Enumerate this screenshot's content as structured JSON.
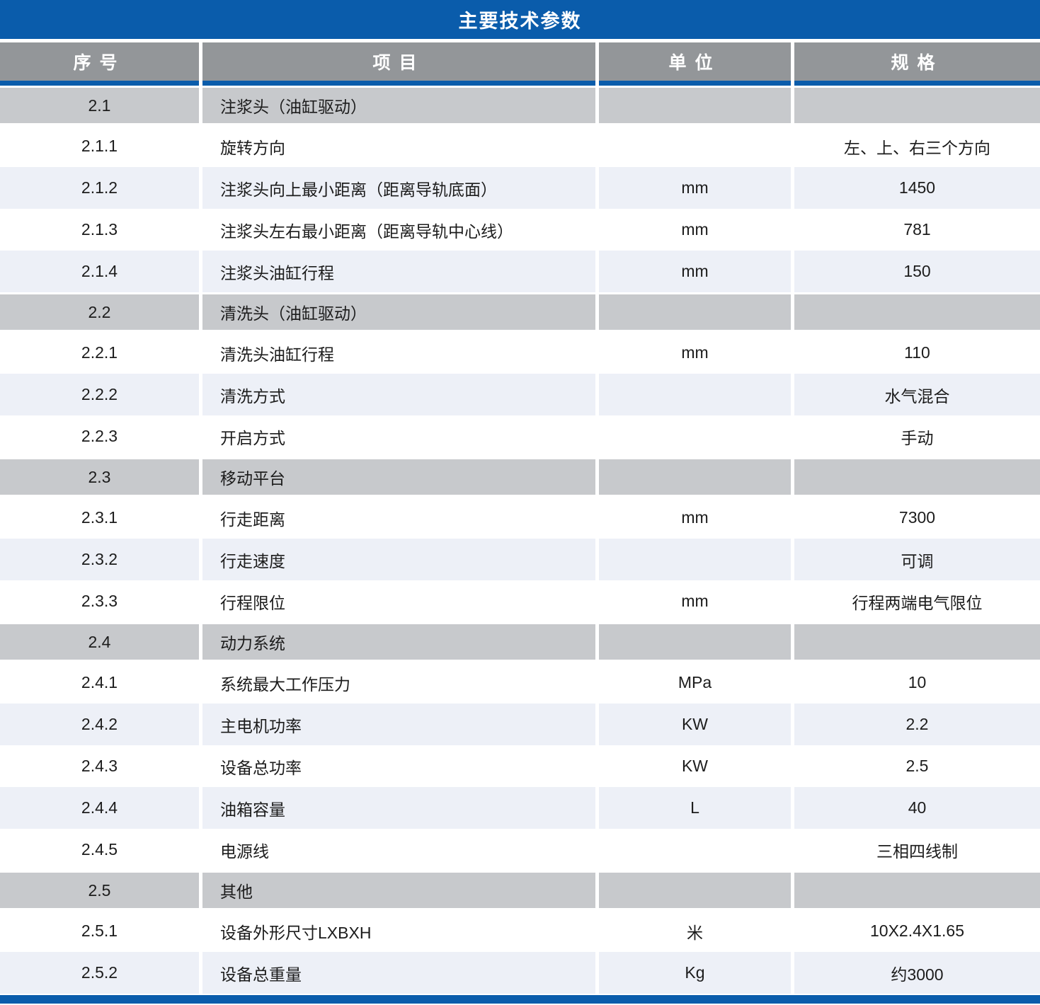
{
  "title": "主要技术参数",
  "columns": [
    "序号",
    "项目",
    "单位",
    "规格"
  ],
  "colors": {
    "accent_blue": "#0a5cab",
    "header_gray": "#939699",
    "section_gray": "#c7c9cc",
    "alt_row": "#edf0f7"
  },
  "rows": [
    {
      "type": "section",
      "no": "2.1",
      "item": "注浆头（油缸驱动）",
      "unit": "",
      "spec": ""
    },
    {
      "type": "data",
      "no": "2.1.1",
      "item": "旋转方向",
      "unit": "",
      "spec": "左、上、右三个方向"
    },
    {
      "type": "data",
      "no": "2.1.2",
      "item": "注浆头向上最小距离（距离导轨底面）",
      "unit": "mm",
      "spec": "1450"
    },
    {
      "type": "data",
      "no": "2.1.3",
      "item": "注浆头左右最小距离（距离导轨中心线）",
      "unit": "mm",
      "spec": "781"
    },
    {
      "type": "data",
      "no": "2.1.4",
      "item": "注浆头油缸行程",
      "unit": "mm",
      "spec": "150"
    },
    {
      "type": "section",
      "no": "2.2",
      "item": "清洗头（油缸驱动）",
      "unit": "",
      "spec": ""
    },
    {
      "type": "data",
      "no": "2.2.1",
      "item": "清洗头油缸行程",
      "unit": "mm",
      "spec": "110"
    },
    {
      "type": "data",
      "no": "2.2.2",
      "item": "清洗方式",
      "unit": "",
      "spec": "水气混合"
    },
    {
      "type": "data",
      "no": "2.2.3",
      "item": "开启方式",
      "unit": "",
      "spec": "手动"
    },
    {
      "type": "section",
      "no": "2.3",
      "item": "移动平台",
      "unit": "",
      "spec": ""
    },
    {
      "type": "data",
      "no": "2.3.1",
      "item": "行走距离",
      "unit": "mm",
      "spec": "7300"
    },
    {
      "type": "data",
      "no": "2.3.2",
      "item": "行走速度",
      "unit": "",
      "spec": "可调"
    },
    {
      "type": "data",
      "no": "2.3.3",
      "item": "行程限位",
      "unit": "mm",
      "spec": "行程两端电气限位"
    },
    {
      "type": "section",
      "no": "2.4",
      "item": "动力系统",
      "unit": "",
      "spec": ""
    },
    {
      "type": "data",
      "no": "2.4.1",
      "item": "系统最大工作压力",
      "unit": "MPa",
      "spec": "10"
    },
    {
      "type": "data",
      "no": "2.4.2",
      "item": "主电机功率",
      "unit": "KW",
      "spec": "2.2"
    },
    {
      "type": "data",
      "no": "2.4.3",
      "item": "设备总功率",
      "unit": "KW",
      "spec": "2.5"
    },
    {
      "type": "data",
      "no": "2.4.4",
      "item": "油箱容量",
      "unit": "L",
      "spec": "40"
    },
    {
      "type": "data",
      "no": "2.4.5",
      "item": "电源线",
      "unit": "",
      "spec": "三相四线制"
    },
    {
      "type": "section",
      "no": "2.5",
      "item": "其他",
      "unit": "",
      "spec": ""
    },
    {
      "type": "data",
      "no": "2.5.1",
      "item": "设备外形尺寸LXBXH",
      "unit": "米",
      "spec": "10X2.4X1.65"
    },
    {
      "type": "data",
      "no": "2.5.2",
      "item": "设备总重量",
      "unit": "Kg",
      "spec": "约3000"
    }
  ]
}
